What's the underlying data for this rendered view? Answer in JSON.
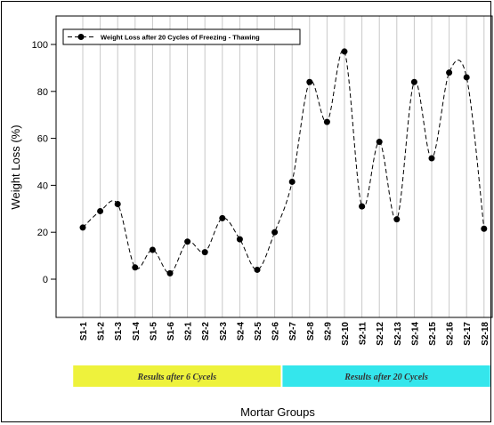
{
  "chart_data": {
    "type": "line",
    "title": "",
    "xlabel": "Mortar Groups",
    "ylabel": "Weight Loss (%)",
    "ylim": [
      -17,
      110
    ],
    "yticks": [
      0,
      20,
      40,
      60,
      80,
      100
    ],
    "grid": "vertical",
    "legend_position": "top-left",
    "categories": [
      "S1-1",
      "S1-2",
      "S1-3",
      "S1-4",
      "S1-5",
      "S1-6",
      "S2-1",
      "S2-2",
      "S2-3",
      "S2-4",
      "S2-5",
      "S2-6",
      "S2-7",
      "S2-8",
      "S2-9",
      "S2-10",
      "S2-11",
      "S2-12",
      "S2-13",
      "S2-14",
      "S2-15",
      "S2-16",
      "S2-17",
      "S2-18"
    ],
    "series": [
      {
        "name": "Weight Loss after 20 Cycles of Freezing - Thawing",
        "line_style": "dashed smooth",
        "marker": "filled circle",
        "values": [
          22,
          29,
          32,
          5,
          12.5,
          2.5,
          16,
          11.5,
          26,
          17,
          4,
          20,
          41.5,
          84,
          67,
          97,
          31,
          58.5,
          25.5,
          84,
          51.5,
          88,
          86,
          21.5
        ]
      }
    ],
    "groups": [
      {
        "label": "Results after 6 Cycels",
        "color": "#eef23c",
        "categories": [
          "S1-1",
          "S2-6"
        ]
      },
      {
        "label": "Results after 20 Cycels",
        "color": "#34e6ec",
        "categories": [
          "S2-7",
          "S2-18"
        ]
      }
    ]
  }
}
